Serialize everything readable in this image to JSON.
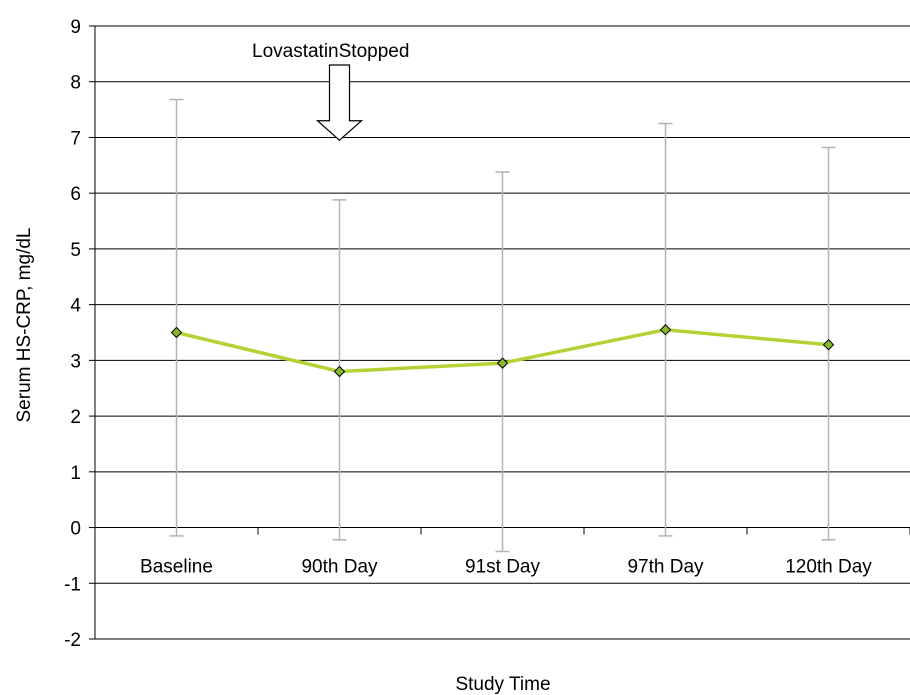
{
  "chart_data": {
    "type": "line",
    "title": "",
    "xlabel": "Study Time",
    "ylabel": "Serum HS-CRP, mg/dL",
    "ylim": [
      -2,
      9
    ],
    "yticks": [
      -2,
      -1,
      0,
      1,
      2,
      3,
      4,
      5,
      6,
      7,
      8,
      9
    ],
    "grid": true,
    "categories": [
      "Baseline",
      "90th Day",
      "91st Day",
      "97th Day",
      "120th Day"
    ],
    "series": [
      {
        "values": [
          3.5,
          2.8,
          2.95,
          3.55,
          3.28
        ],
        "error_low": [
          -0.15,
          -0.22,
          -0.43,
          -0.15,
          -0.22
        ],
        "error_high": [
          7.68,
          5.88,
          6.38,
          7.25,
          6.82
        ],
        "color": "#b3d335",
        "marker_color": "#8ab82a",
        "errorbar_color": "#b3b3b3"
      }
    ],
    "annotation": {
      "text": "LovastatinStopped",
      "category": "90th Day",
      "arrow": "down-arrow-outline"
    }
  }
}
